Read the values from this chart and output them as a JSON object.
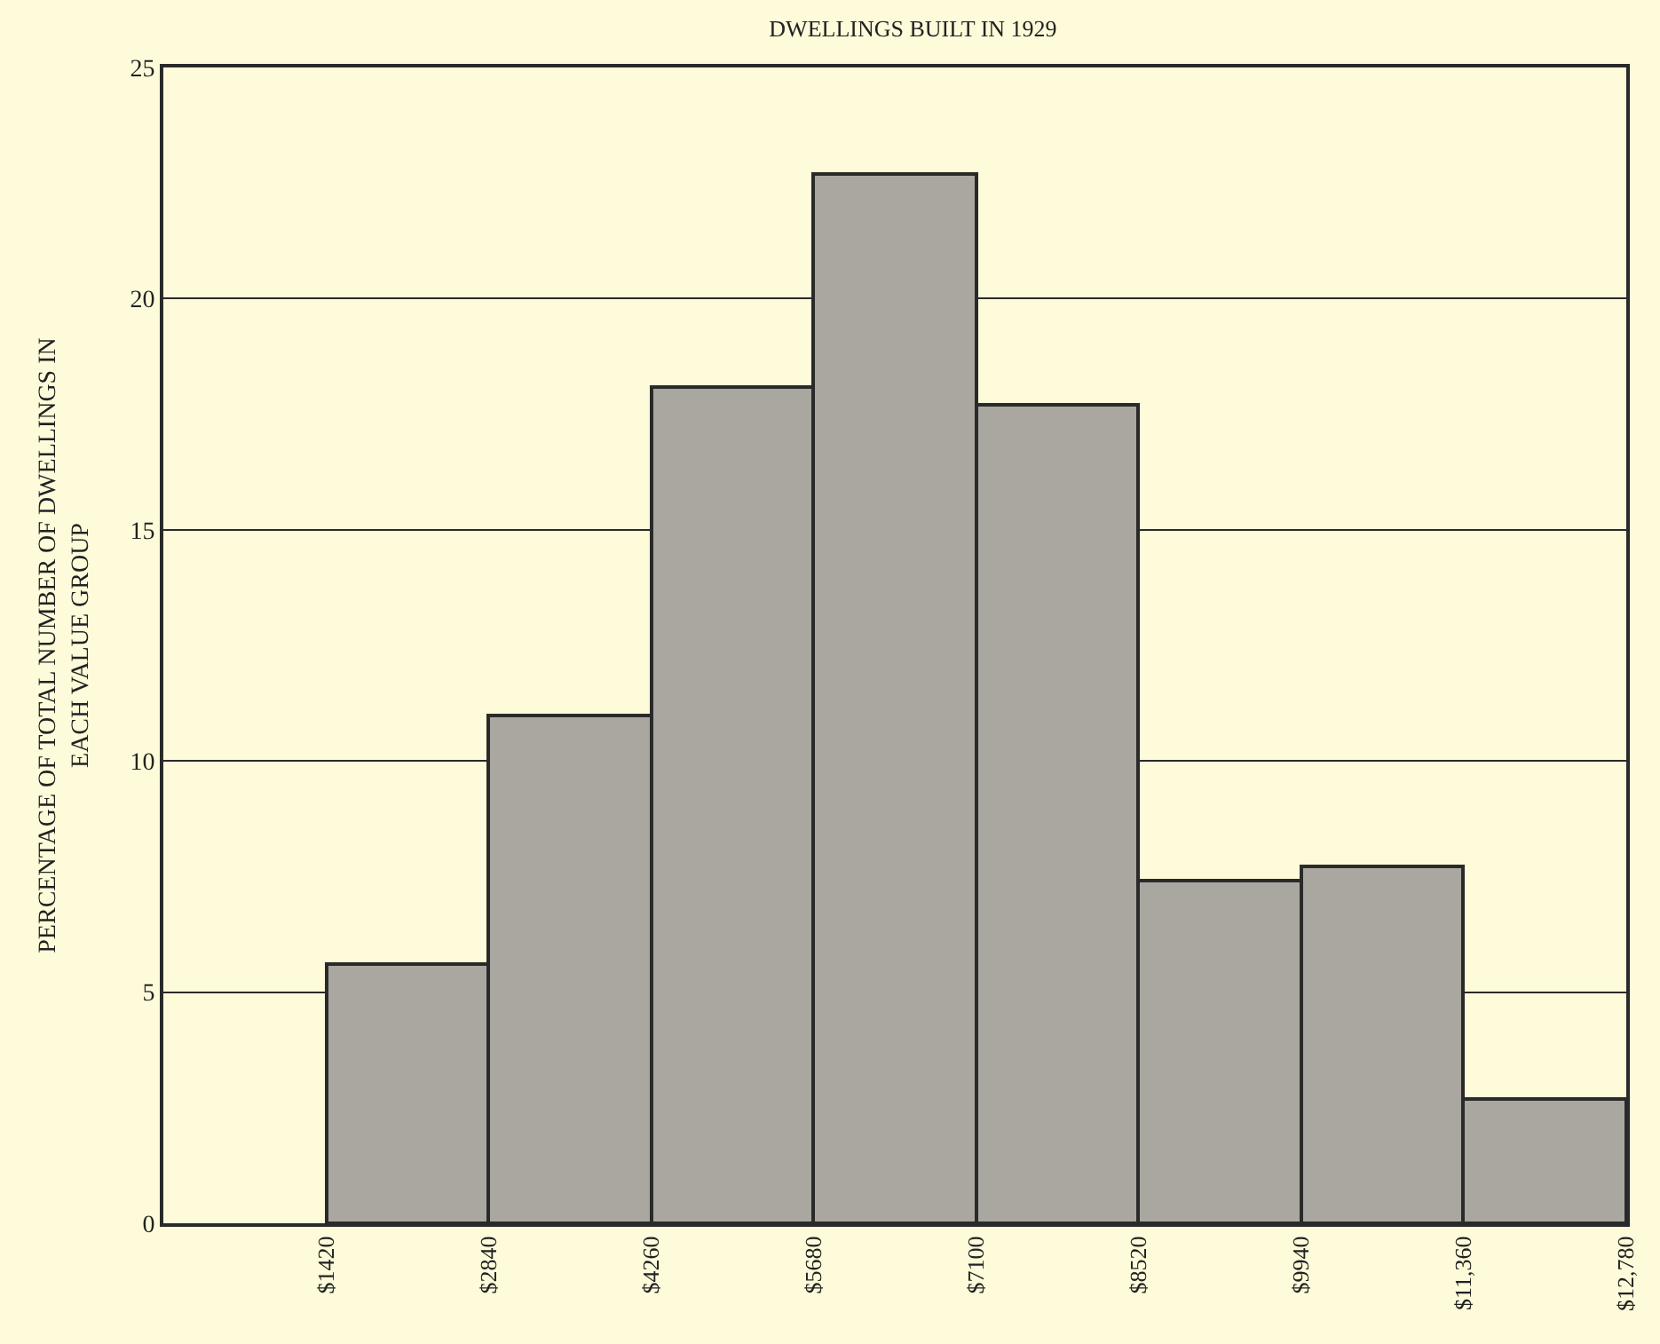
{
  "chart_data": {
    "type": "histogram",
    "title": "DWELLINGS BUILT IN 1929",
    "ylabel": "PERCENTAGE OF TOTAL NUMBER OF DWELLINGS IN\nEACH VALUE GROUP",
    "bins": [
      1420,
      2840,
      4260,
      5680,
      7100,
      8520,
      9940,
      11360,
      12780
    ],
    "values": [
      5.6,
      11.0,
      18.1,
      22.7,
      17.7,
      7.4,
      7.7,
      2.7
    ],
    "color": "#a9a79f",
    "xlim": [
      0,
      12780
    ],
    "xticks": [
      {
        "value": 1420,
        "label": "$1420"
      },
      {
        "value": 2840,
        "label": "$2840"
      },
      {
        "value": 4260,
        "label": "$4260"
      },
      {
        "value": 5680,
        "label": "$5680"
      },
      {
        "value": 7100,
        "label": "$7100"
      },
      {
        "value": 8520,
        "label": "$8520"
      },
      {
        "value": 9940,
        "label": "$9940"
      },
      {
        "value": 11360,
        "label": "$11,360"
      },
      {
        "value": 12780,
        "label": "$12,780"
      }
    ],
    "ylim": [
      0,
      25
    ],
    "yticks": [
      0,
      5,
      10,
      15,
      20,
      25
    ],
    "grid": "y",
    "legend": false
  }
}
